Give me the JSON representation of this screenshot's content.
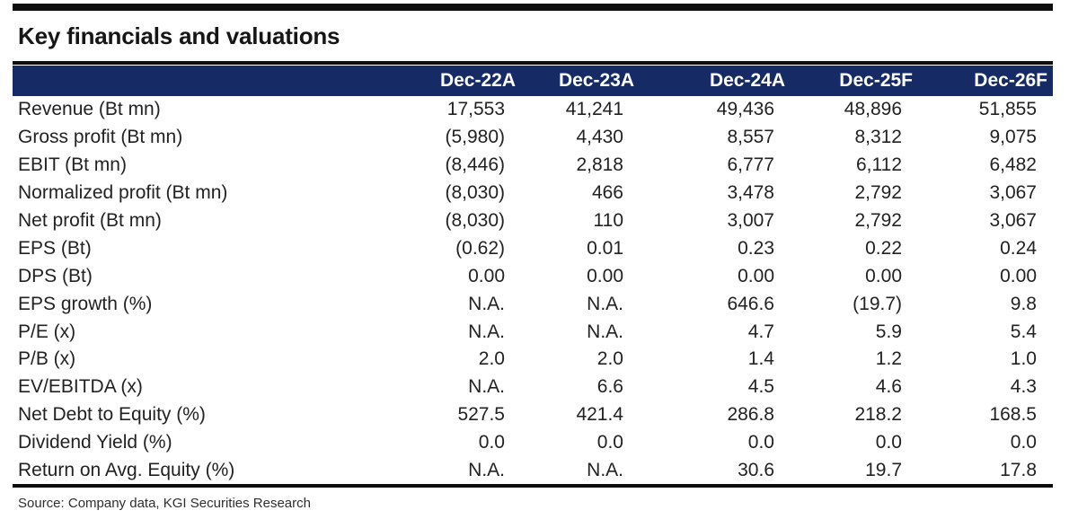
{
  "title": "Key financials and valuations",
  "table": {
    "columns": [
      "",
      "Dec-22A",
      "Dec-23A",
      "Dec-24A",
      "Dec-25F",
      "Dec-26F"
    ],
    "rows": [
      {
        "label": "Revenue (Bt mn)",
        "values": [
          "17,553",
          "41,241",
          "49,436",
          "48,896",
          "51,855"
        ]
      },
      {
        "label": "Gross profit (Bt mn)",
        "values": [
          "(5,980)",
          "4,430",
          "8,557",
          "8,312",
          "9,075"
        ]
      },
      {
        "label": "EBIT (Bt mn)",
        "values": [
          "(8,446)",
          "2,818",
          "6,777",
          "6,112",
          "6,482"
        ]
      },
      {
        "label": "Normalized profit (Bt mn)",
        "values": [
          "(8,030)",
          "466",
          "3,478",
          "2,792",
          "3,067"
        ]
      },
      {
        "label": "Net profit (Bt mn)",
        "values": [
          "(8,030)",
          "110",
          "3,007",
          "2,792",
          "3,067"
        ]
      },
      {
        "label": "EPS (Bt)",
        "values": [
          "(0.62)",
          "0.01",
          "0.23",
          "0.22",
          "0.24"
        ]
      },
      {
        "label": "DPS (Bt)",
        "values": [
          "0.00",
          "0.00",
          "0.00",
          "0.00",
          "0.00"
        ]
      },
      {
        "label": "EPS growth (%)",
        "values": [
          "N.A.",
          "N.A.",
          "646.6",
          "(19.7)",
          "9.8"
        ]
      },
      {
        "label": "P/E (x)",
        "values": [
          "N.A.",
          "N.A.",
          "4.7",
          "5.9",
          "5.4"
        ]
      },
      {
        "label": "P/B (x)",
        "values": [
          "2.0",
          "2.0",
          "1.4",
          "1.2",
          "1.0"
        ]
      },
      {
        "label": "EV/EBITDA (x)",
        "values": [
          "N.A.",
          "6.6",
          "4.5",
          "4.6",
          "4.3"
        ]
      },
      {
        "label": "Net Debt to Equity (%)",
        "values": [
          "527.5",
          "421.4",
          "286.8",
          "218.2",
          "168.5"
        ]
      },
      {
        "label": "Dividend Yield (%)",
        "values": [
          "0.0",
          "0.0",
          "0.0",
          "0.0",
          "0.0"
        ]
      },
      {
        "label": "Return on Avg. Equity (%)",
        "values": [
          "N.A.",
          "N.A.",
          "30.6",
          "19.7",
          "17.8"
        ]
      }
    ]
  },
  "source": "Source: Company data, KGI Securities Research",
  "colors": {
    "header_bg": "#162a66",
    "rule": "#0d0d0d",
    "header_text": "#ffffff",
    "body_text": "#222222"
  }
}
